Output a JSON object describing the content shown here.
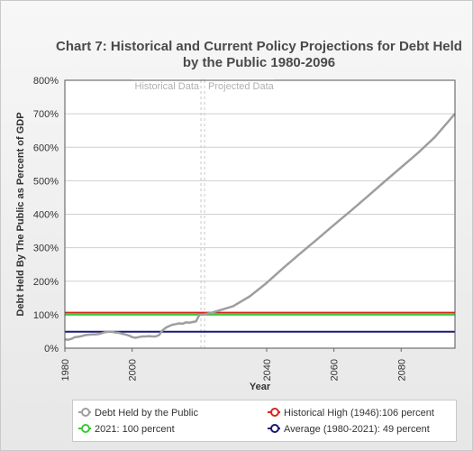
{
  "chart_data": {
    "type": "line",
    "title": "Chart 7: Historical and Current Policy Projections for Debt Held by the Public 1980-2096",
    "xlabel": "Year",
    "ylabel": "Debt Held By The Public as Percent of GDP",
    "xlim": [
      1980,
      2096
    ],
    "ylim": [
      0,
      800
    ],
    "x_ticks": [
      "1980",
      "2000",
      "2040",
      "2060",
      "2080"
    ],
    "y_ticks": [
      "0%",
      "100%",
      "200%",
      "300%",
      "400%",
      "500%",
      "600%",
      "700%",
      "800%"
    ],
    "grid": true,
    "legend_position": "bottom",
    "annotations": [
      {
        "text": "Historical Data",
        "x": 2021
      },
      {
        "text": "Projected Data",
        "x": 2021
      }
    ],
    "series": [
      {
        "name": "Debt Held by the Public",
        "color": "#9e9e9e",
        "x": [
          1980,
          1981,
          1982,
          1983,
          1984,
          1985,
          1986,
          1987,
          1988,
          1989,
          1990,
          1991,
          1992,
          1993,
          1994,
          1995,
          1996,
          1997,
          1998,
          1999,
          2000,
          2001,
          2002,
          2003,
          2004,
          2005,
          2006,
          2007,
          2008,
          2009,
          2010,
          2011,
          2012,
          2013,
          2014,
          2015,
          2016,
          2017,
          2018,
          2019,
          2020,
          2021,
          2024,
          2030,
          2035,
          2040,
          2045,
          2050,
          2055,
          2060,
          2065,
          2070,
          2075,
          2080,
          2085,
          2090,
          2096
        ],
        "values": [
          26,
          25,
          28,
          33,
          34,
          36,
          39,
          40,
          41,
          41,
          42,
          45,
          48,
          49,
          49,
          47,
          46,
          43,
          41,
          38,
          33,
          31,
          33,
          35,
          35,
          36,
          35,
          35,
          39,
          53,
          61,
          66,
          70,
          72,
          74,
          73,
          77,
          76,
          78,
          80,
          100,
          100,
          107,
          125,
          155,
          195,
          240,
          283,
          325,
          368,
          410,
          453,
          497,
          540,
          583,
          630,
          700
        ]
      },
      {
        "name": "Historical High (1946):106 percent",
        "color": "#d9261c",
        "x": [
          1980,
          2096
        ],
        "values": [
          106,
          106
        ]
      },
      {
        "name": "2021: 100 percent",
        "color": "#3cc83c",
        "x": [
          1980,
          2096
        ],
        "values": [
          100,
          100
        ]
      },
      {
        "name": "Average (1980-2021): 49 percent",
        "color": "#1a1a7a",
        "x": [
          1980,
          2096
        ],
        "values": [
          49,
          49
        ]
      }
    ]
  }
}
